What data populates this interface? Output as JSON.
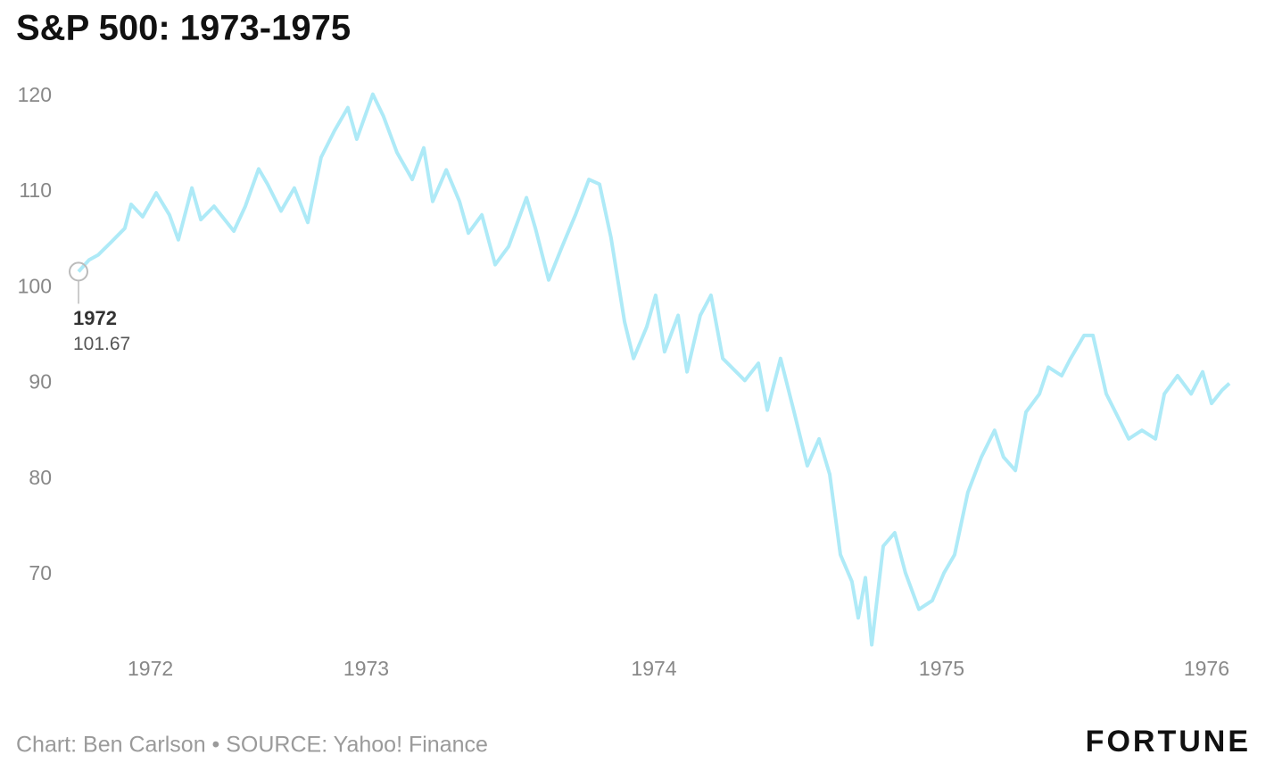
{
  "chart_data": {
    "type": "line",
    "title": "S&P 500: 1973-1975",
    "source": "Chart: Ben Carlson • SOURCE: Yahoo! Finance",
    "logo": "FORTUNE",
    "color": "#aeeaf7",
    "x": [
      1972.0,
      1972.037,
      1972.068,
      1972.115,
      1972.161,
      1972.183,
      1972.223,
      1972.27,
      1972.316,
      1972.347,
      1972.394,
      1972.425,
      1972.471,
      1972.54,
      1972.58,
      1972.626,
      1972.657,
      1972.704,
      1972.75,
      1972.797,
      1972.843,
      1972.89,
      1972.936,
      1972.967,
      1973.023,
      1973.06,
      1973.107,
      1973.16,
      1973.2,
      1973.231,
      1973.278,
      1973.324,
      1973.355,
      1973.402,
      1973.448,
      1973.495,
      1973.557,
      1973.588,
      1973.634,
      1973.681,
      1973.727,
      1973.774,
      1973.811,
      1973.851,
      1973.898,
      1973.929,
      1973.975,
      1974.006,
      1974.037,
      1974.084,
      1974.115,
      1974.161,
      1974.198,
      1974.239,
      1974.316,
      1974.363,
      1974.394,
      1974.44,
      1974.487,
      1974.533,
      1974.574,
      1974.611,
      1974.648,
      1974.688,
      1974.71,
      1974.735,
      1974.757,
      1974.797,
      1974.837,
      1974.874,
      1974.921,
      1974.967,
      1975.008,
      1975.045,
      1975.091,
      1975.138,
      1975.184,
      1975.215,
      1975.256,
      1975.293,
      1975.34,
      1975.371,
      1975.417,
      1975.448,
      1975.495,
      1975.526,
      1975.572,
      1975.619,
      1975.65,
      1975.696,
      1975.743,
      1975.774,
      1975.82,
      1975.867,
      1975.907,
      1975.938,
      1975.975,
      1976.0
    ],
    "values": [
      101.67,
      102.9,
      103.4,
      104.8,
      106.2,
      108.7,
      107.4,
      109.9,
      107.6,
      105,
      110.4,
      107.1,
      108.5,
      105.9,
      108.5,
      112.4,
      110.8,
      108,
      110.4,
      106.8,
      113.6,
      116.4,
      118.8,
      115.5,
      120.2,
      117.9,
      114.1,
      111.3,
      114.6,
      109,
      112.3,
      109,
      105.7,
      107.6,
      102.4,
      104.3,
      109.4,
      106.2,
      100.8,
      104.3,
      107.6,
      111.3,
      110.8,
      105.2,
      96.4,
      92.6,
      95.9,
      99.2,
      93.3,
      97.1,
      91.2,
      97.1,
      99.2,
      92.6,
      90.3,
      92.1,
      87.2,
      92.6,
      87,
      81.4,
      84.2,
      80.5,
      72.1,
      69.3,
      65.5,
      69.7,
      62.7,
      73,
      74.4,
      70.2,
      66.4,
      67.3,
      70.2,
      72.1,
      78.6,
      82.3,
      85.1,
      82.3,
      80.9,
      87,
      88.9,
      91.7,
      90.8,
      92.6,
      95,
      95,
      88.9,
      86.1,
      84.2,
      85.1,
      84.2,
      88.9,
      90.8,
      88.9,
      91.2,
      87.9,
      89.3,
      90
    ],
    "xlim": [
      1972,
      1976
    ],
    "xticks": [
      1972,
      1973,
      1974,
      1975,
      1976
    ],
    "ylim": [
      62,
      121
    ],
    "yticks": [
      70,
      80,
      90,
      100,
      110,
      120
    ]
  }
}
